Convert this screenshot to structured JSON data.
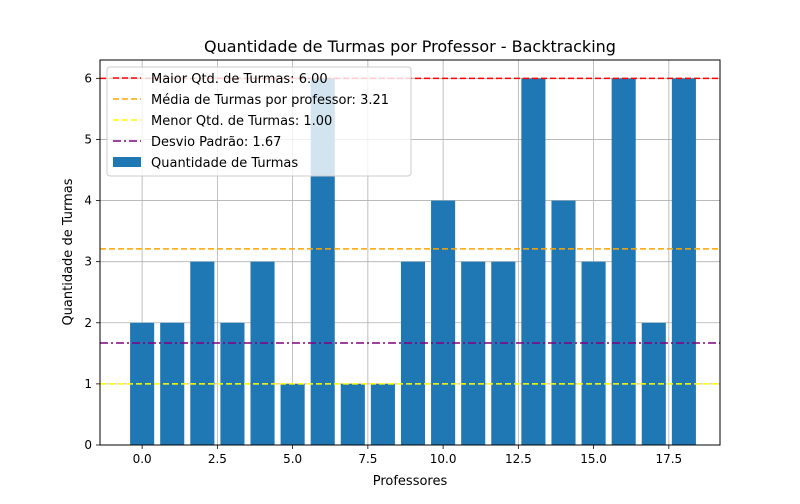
{
  "chart_data": {
    "type": "bar",
    "title": "Quantidade de Turmas por Professor - Backtracking",
    "xlabel": "Professores",
    "ylabel": "Quantidade de Turmas",
    "x": [
      0,
      1,
      2,
      3,
      4,
      5,
      6,
      7,
      8,
      9,
      10,
      11,
      12,
      13,
      14,
      15,
      16,
      17,
      18
    ],
    "values": [
      2,
      2,
      3,
      2,
      3,
      1,
      6,
      1,
      1,
      3,
      4,
      3,
      3,
      6,
      4,
      3,
      6,
      2,
      6
    ],
    "bar_color": "#1f77b4",
    "xlim": [
      -1.4,
      19.2
    ],
    "ylim": [
      0,
      6.3
    ],
    "xticks": [
      0.0,
      2.5,
      5.0,
      7.5,
      10.0,
      12.5,
      15.0,
      17.5
    ],
    "xtick_labels": [
      "0.0",
      "2.5",
      "5.0",
      "7.5",
      "10.0",
      "12.5",
      "15.0",
      "17.5"
    ],
    "yticks": [
      0,
      1,
      2,
      3,
      4,
      5,
      6
    ],
    "ytick_labels": [
      "0",
      "1",
      "2",
      "3",
      "4",
      "5",
      "6"
    ],
    "grid": true,
    "legend_position": "top-left",
    "hlines": [
      {
        "label": "Maior Qtd. de Turmas: 6.00",
        "value": 6.0,
        "color": "#ff0000",
        "style": "dashed"
      },
      {
        "label": "Média de Turmas por professor: 3.21",
        "value": 3.21,
        "color": "#ffa500",
        "style": "dashed"
      },
      {
        "label": "Menor Qtd. de Turmas: 1.00",
        "value": 1.0,
        "color": "#ffff00",
        "style": "dashed"
      },
      {
        "label": "Desvio Padrão: 1.67",
        "value": 1.67,
        "color": "#800080",
        "style": "dashdot"
      }
    ],
    "bar_series_label": "Quantidade de Turmas"
  }
}
